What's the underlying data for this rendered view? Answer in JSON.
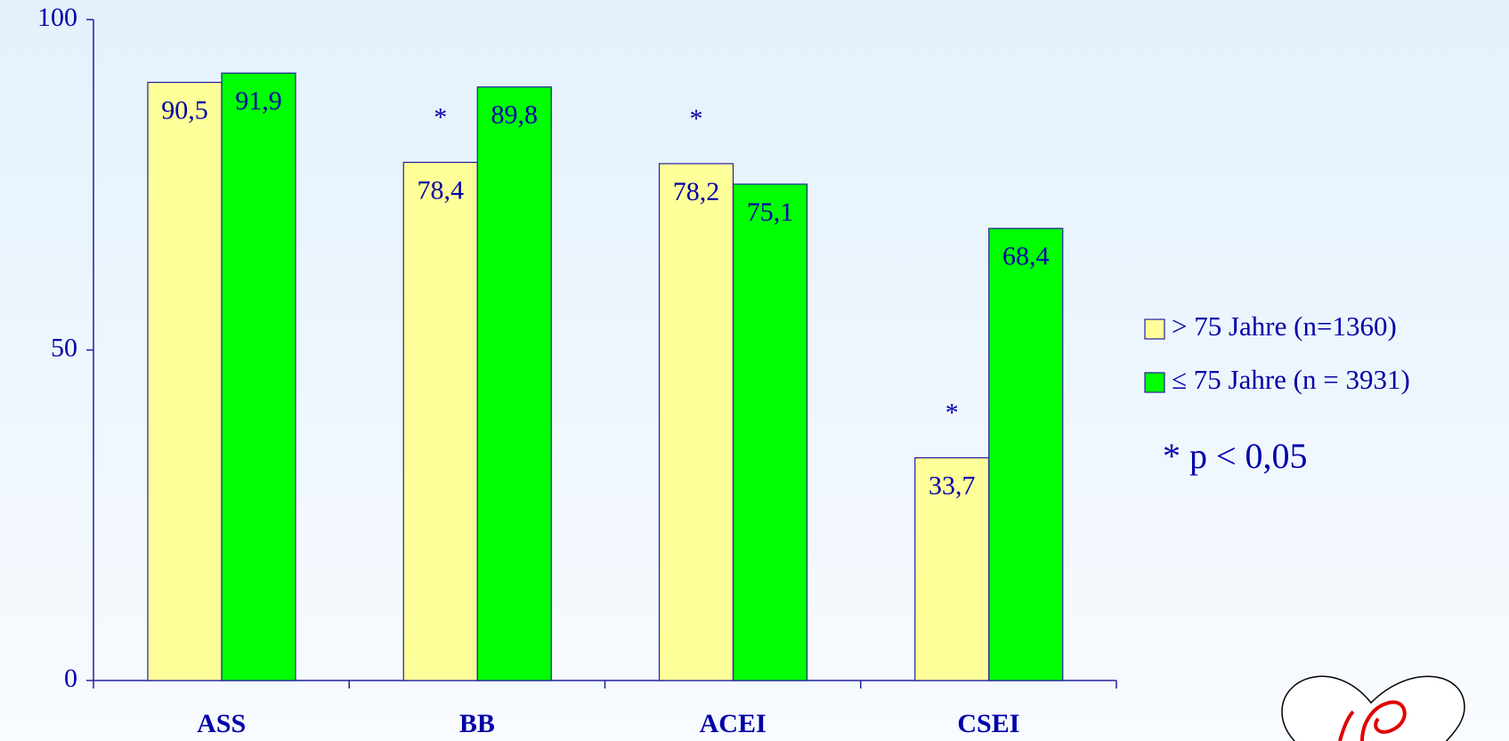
{
  "chart_data": {
    "type": "bar",
    "categories": [
      "ASS",
      "BB",
      "ACEI",
      "CSEI"
    ],
    "series": [
      {
        "name": "> 75 Jahre (n=1360)",
        "color": "#ffff99",
        "values": [
          90.5,
          78.4,
          78.2,
          33.7
        ],
        "value_labels": [
          "90,5",
          "78,4",
          "78,2",
          "33,7"
        ],
        "significance": [
          null,
          "*",
          "*",
          "*"
        ]
      },
      {
        "name": "≤ 75 Jahre (n = 3931)",
        "color": "#00ff00",
        "values": [
          91.9,
          89.8,
          75.1,
          68.4
        ],
        "value_labels": [
          "91,9",
          "89,8",
          "75,1",
          "68,4"
        ]
      }
    ],
    "ylim": [
      0,
      100
    ],
    "yticks": [
      0,
      50,
      100
    ],
    "legend": "right",
    "note": "* p < 0,05"
  }
}
